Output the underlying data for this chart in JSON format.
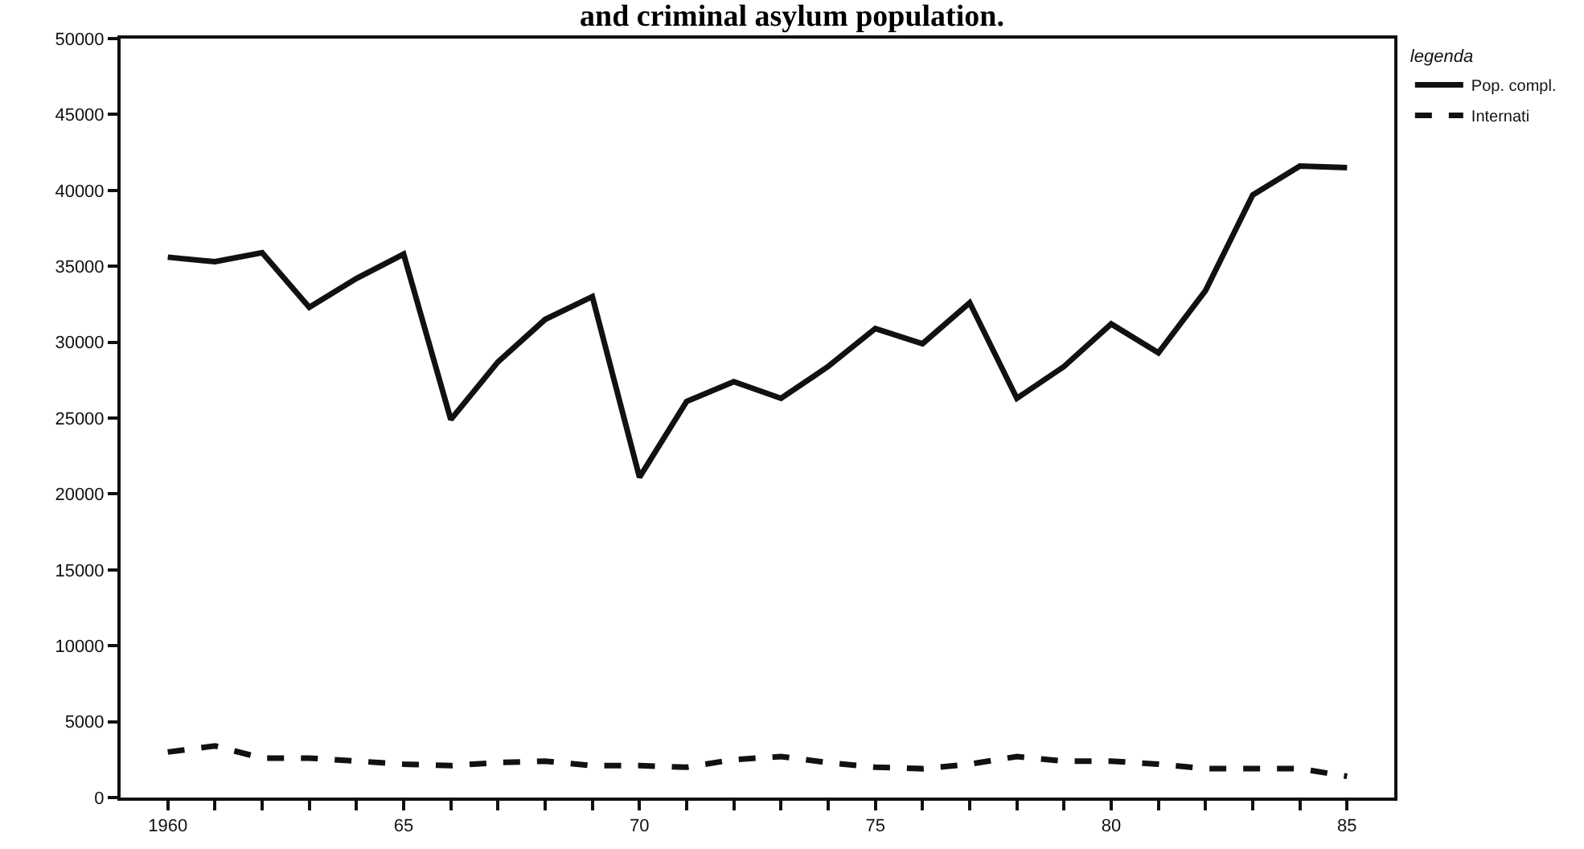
{
  "chart_data": {
    "type": "line",
    "title": "and criminal asylum population.",
    "legend_title": "legenda",
    "x": [
      1960,
      1961,
      1962,
      1963,
      1964,
      1965,
      1966,
      1967,
      1968,
      1969,
      1970,
      1971,
      1972,
      1973,
      1974,
      1975,
      1976,
      1977,
      1978,
      1979,
      1980,
      1981,
      1982,
      1983,
      1984,
      1985
    ],
    "series": [
      {
        "name": "Pop. compl.",
        "color": "#111111",
        "line_style": "solid",
        "values": [
          35600,
          35300,
          35900,
          32300,
          34200,
          35800,
          24900,
          28700,
          31500,
          33000,
          21100,
          26100,
          27400,
          26300,
          28400,
          30900,
          29900,
          32600,
          26300,
          28400,
          31200,
          29300,
          33400,
          39700,
          41600,
          41500
        ]
      },
      {
        "name": "Internati",
        "color": "#111111",
        "line_style": "dashed",
        "values": [
          3000,
          3400,
          2600,
          2600,
          2400,
          2200,
          2100,
          2300,
          2400,
          2100,
          2100,
          2000,
          2500,
          2700,
          2300,
          2000,
          1900,
          2200,
          2700,
          2400,
          2400,
          2200,
          1900,
          1900,
          1900,
          1400
        ]
      }
    ],
    "xlim": [
      1959,
      1986
    ],
    "xticks": [
      {
        "value": 1960,
        "label": "1960"
      },
      {
        "value": 1961,
        "label": null
      },
      {
        "value": 1962,
        "label": null
      },
      {
        "value": 1963,
        "label": null
      },
      {
        "value": 1964,
        "label": null
      },
      {
        "value": 1965,
        "label": "65"
      },
      {
        "value": 1966,
        "label": null
      },
      {
        "value": 1967,
        "label": null
      },
      {
        "value": 1968,
        "label": null
      },
      {
        "value": 1969,
        "label": null
      },
      {
        "value": 1970,
        "label": "70"
      },
      {
        "value": 1971,
        "label": null
      },
      {
        "value": 1972,
        "label": null
      },
      {
        "value": 1973,
        "label": null
      },
      {
        "value": 1974,
        "label": null
      },
      {
        "value": 1975,
        "label": "75"
      },
      {
        "value": 1976,
        "label": null
      },
      {
        "value": 1977,
        "label": null
      },
      {
        "value": 1978,
        "label": null
      },
      {
        "value": 1979,
        "label": null
      },
      {
        "value": 1980,
        "label": "80"
      },
      {
        "value": 1981,
        "label": null
      },
      {
        "value": 1982,
        "label": null
      },
      {
        "value": 1983,
        "label": null
      },
      {
        "value": 1984,
        "label": null
      },
      {
        "value": 1985,
        "label": "85"
      }
    ],
    "ylim": [
      0,
      50000
    ],
    "yticks": [
      0,
      5000,
      10000,
      15000,
      20000,
      25000,
      30000,
      35000,
      40000,
      45000,
      50000
    ],
    "grid": false,
    "legend": "top right",
    "marker": "none"
  }
}
